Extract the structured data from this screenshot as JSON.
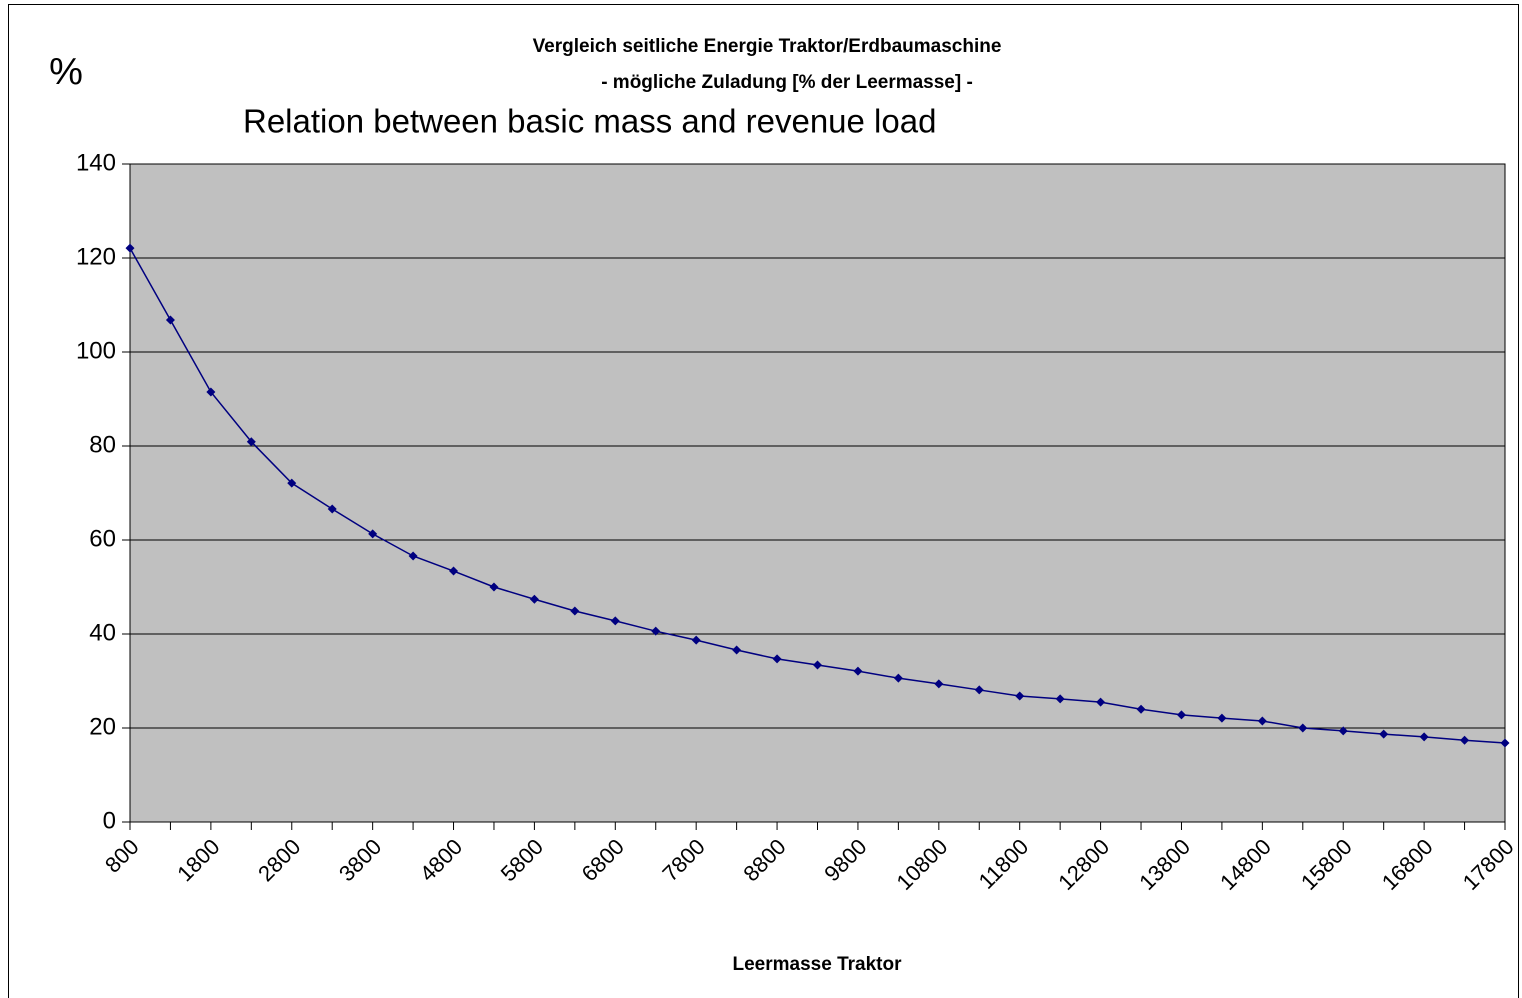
{
  "chart_data": {
    "type": "line",
    "title": "Vergleich seitliche Energie Traktor/Erdbaumaschine",
    "subtitle": "- mögliche Zuladung [% der Leermasse] -",
    "annotation": "Relation between basic mass and revenue load",
    "xlabel": "Leermasse Traktor",
    "ylabel": "%",
    "categories": [
      "800",
      null,
      "1800",
      null,
      "2800",
      null,
      "3800",
      null,
      "4800",
      null,
      "5800",
      null,
      "6800",
      null,
      "7800",
      null,
      "8800",
      null,
      "9800",
      null,
      "10800",
      null,
      "11800",
      null,
      "12800",
      null,
      "13800",
      null,
      "14800",
      null,
      "15800",
      null,
      "16800",
      null,
      "17800"
    ],
    "values": [
      122.1,
      106.8,
      91.5,
      80.9,
      72.1,
      66.6,
      61.3,
      56.6,
      53.4,
      50.0,
      47.4,
      44.9,
      42.8,
      40.6,
      38.7,
      36.6,
      34.7,
      33.4,
      32.1,
      30.6,
      29.4,
      28.1,
      26.8,
      26.2,
      25.5,
      24.0,
      22.8,
      22.1,
      21.5,
      20.0,
      19.4,
      18.7,
      18.1,
      17.4,
      16.8
    ],
    "color": "#000080",
    "plot_background": "#c0c0c0",
    "ylim": [
      0,
      140
    ],
    "yticks": [
      0,
      20,
      40,
      60,
      80,
      100,
      120,
      140
    ],
    "grid": true
  }
}
